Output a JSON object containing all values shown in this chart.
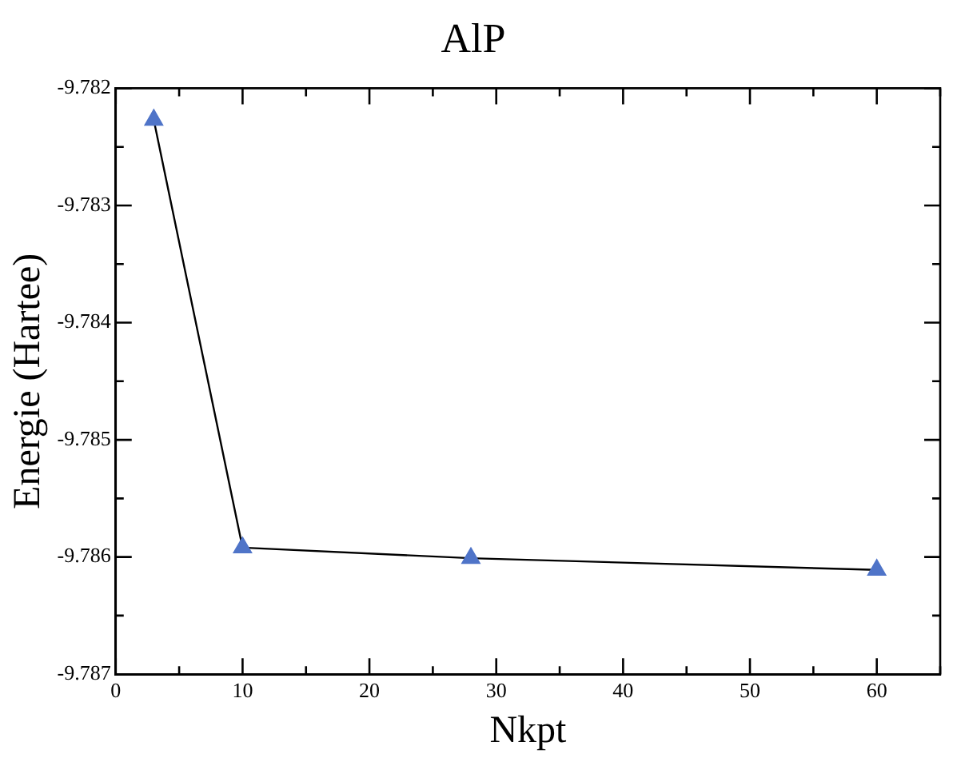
{
  "chart_data": {
    "type": "line",
    "title": "AlP",
    "xlabel": "Nkpt",
    "ylabel": "Energie (Hartee)",
    "x": [
      3,
      10,
      28,
      60
    ],
    "series": [
      {
        "color": "#4f74c8",
        "values": [
          -9.78227,
          -9.78592,
          -9.78601,
          -9.78611
        ]
      }
    ],
    "xlim": [
      0,
      65
    ],
    "xticks": [
      0,
      {
        "value": 5,
        "label": null
      },
      10,
      {
        "value": 15,
        "label": null
      },
      20,
      {
        "value": 25,
        "label": null
      },
      30,
      {
        "value": 35,
        "label": null
      },
      40,
      {
        "value": 45,
        "label": null
      },
      50,
      {
        "value": 55,
        "label": null
      },
      60,
      {
        "value": 65,
        "label": null
      }
    ],
    "ylim": [
      -9.787,
      -9.782
    ],
    "yticks": [
      -9.787,
      {
        "value": -9.7865,
        "label": null
      },
      -9.786,
      {
        "value": -9.7855,
        "label": null
      },
      -9.785,
      {
        "value": -9.7845,
        "label": null
      },
      -9.784,
      {
        "value": -9.7835,
        "label": null
      },
      -9.783,
      {
        "value": -9.7825,
        "label": null
      },
      -9.782
    ],
    "grid": false,
    "legend": false,
    "marker": "triangle",
    "line_style": "solid"
  }
}
